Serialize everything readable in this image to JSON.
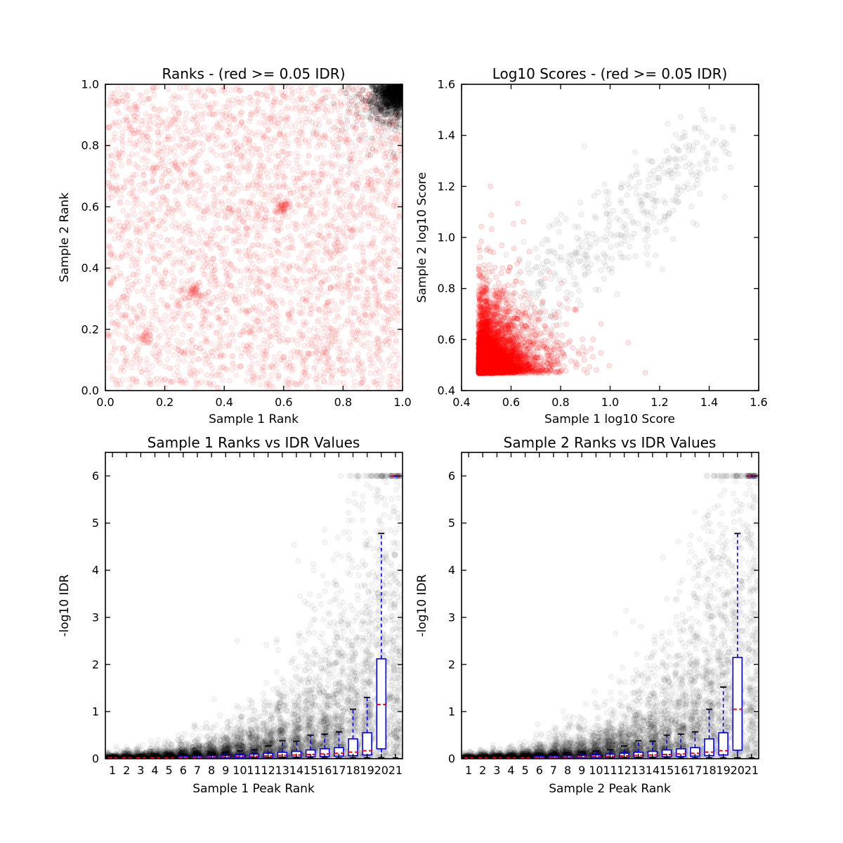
{
  "figure": {
    "background": "#ffffff"
  },
  "palette": {
    "significant_red": "#ff0000",
    "reproducible_black": "#000000",
    "scatter_gray": "#888888",
    "box_blue": "#0000ff",
    "median_red": "#ff0000",
    "cap_black": "#000000"
  },
  "chart_data": [
    {
      "id": "ranks-scatter",
      "type": "scatter",
      "title": "Ranks - (red >= 0.05 IDR)",
      "xlabel": "Sample 1 Rank",
      "ylabel": "Sample 2 Rank",
      "xlim": [
        0.0,
        1.0
      ],
      "ylim": [
        0.0,
        1.0
      ],
      "xticks": {
        "values": [
          0.0,
          0.2,
          0.4,
          0.6,
          0.8,
          1.0
        ],
        "labels": [
          "0.0",
          "0.2",
          "0.4",
          "0.6",
          "0.8",
          "1.0"
        ]
      },
      "yticks": {
        "values": [
          0.0,
          0.2,
          0.4,
          0.6,
          0.8,
          1.0
        ],
        "labels": [
          "0.0",
          "0.2",
          "0.4",
          "0.6",
          "0.8",
          "1.0"
        ]
      },
      "grid": false,
      "series": [
        {
          "name": "irreproducible-red-points",
          "kind": "uniform",
          "n": 3400,
          "range": [
            0.008,
            0.992
          ],
          "color": "#ff0000",
          "opacity": 0.055,
          "edge_opacity": 0.1,
          "radius": 3.5,
          "clusters": [
            {
              "x": 0.6,
              "y": 0.6,
              "n": 45,
              "sigma": 0.013
            },
            {
              "x": 0.3,
              "y": 0.32,
              "n": 40,
              "sigma": 0.014
            },
            {
              "x": 0.13,
              "y": 0.18,
              "n": 25,
              "sigma": 0.012
            }
          ]
        },
        {
          "name": "reproducible-black-corner-points",
          "kind": "corner",
          "n": 620,
          "corner": [
            1.0,
            1.0
          ],
          "sigma": 0.048,
          "color": "#000000",
          "opacity": 0.1,
          "edge_opacity": 0.16,
          "radius": 3.5
        },
        {
          "name": "reproducible-black-corner-halo",
          "kind": "corner",
          "n": 180,
          "corner": [
            1.0,
            1.0
          ],
          "sigma": 0.12,
          "color": "#000000",
          "opacity": 0.05,
          "edge_opacity": 0.08,
          "radius": 3.5
        }
      ]
    },
    {
      "id": "log10-scores-scatter",
      "type": "scatter",
      "title": "Log10 Scores - (red >= 0.05 IDR)",
      "xlabel": "Sample 1 log10 Score",
      "ylabel": "Sample 2 log10 Score",
      "xlim": [
        0.4,
        1.6
      ],
      "ylim": [
        0.4,
        1.6
      ],
      "xticks": {
        "values": [
          0.4,
          0.6,
          0.8,
          1.0,
          1.2,
          1.4,
          1.6
        ],
        "labels": [
          "0.4",
          "0.6",
          "0.8",
          "1.0",
          "1.2",
          "1.4",
          "1.6"
        ]
      },
      "yticks": {
        "values": [
          0.4,
          0.6,
          0.8,
          1.0,
          1.2,
          1.4,
          1.6
        ],
        "labels": [
          "0.4",
          "0.6",
          "0.8",
          "1.0",
          "1.2",
          "1.4",
          "1.6"
        ]
      },
      "grid": false,
      "series": [
        {
          "name": "red-low-score-cloud",
          "kind": "expo2d",
          "n": 4200,
          "origin": [
            0.468,
            0.468
          ],
          "scale": [
            0.075,
            0.082
          ],
          "max": 1.55,
          "color": "#ff0000",
          "opacity": 0.1,
          "edge_opacity": 0.16,
          "radius": 3.5
        },
        {
          "name": "red-low-score-core",
          "kind": "expo2d",
          "n": 750,
          "origin": [
            0.468,
            0.468
          ],
          "scale": [
            0.035,
            0.04
          ],
          "max": 1.2,
          "color": "#ff0000",
          "opacity": 0.1,
          "edge_opacity": 0.16,
          "radius": 3.5
        },
        {
          "name": "gray-high-score-cloud",
          "kind": "diag",
          "n": 360,
          "start": [
            0.715,
            0.795
          ],
          "dir": [
            0.73,
            0.6
          ],
          "noise": [
            0.05,
            0.095
          ],
          "pow": 1.15,
          "max": 1.52,
          "color": "#888888",
          "opacity": 0.1,
          "edge_opacity": 0.14,
          "radius": 3.8
        }
      ]
    },
    {
      "id": "sample1-ranks-vs-idr",
      "type": "boxplot",
      "title": "Sample 1 Ranks vs IDR Values",
      "xlabel": "Sample 1 Peak Rank",
      "ylabel": "-log10 IDR",
      "xlim": [
        0.5,
        21.5
      ],
      "ylim": [
        0,
        6.5
      ],
      "xticks": {
        "values": [
          1,
          2,
          3,
          4,
          5,
          6,
          7,
          8,
          9,
          10,
          11,
          12,
          13,
          14,
          15,
          16,
          17,
          18,
          19,
          20,
          21
        ],
        "labels": [
          "1",
          "2",
          "3",
          "4",
          "5",
          "6",
          "7",
          "8",
          "9",
          "10",
          "11",
          "12",
          "13",
          "14",
          "15",
          "16",
          "17",
          "18",
          "19",
          "20",
          "21"
        ]
      },
      "yticks": {
        "values": [
          0,
          1,
          2,
          3,
          4,
          5,
          6
        ],
        "labels": [
          "0",
          "1",
          "2",
          "3",
          "4",
          "5",
          "6"
        ]
      },
      "grid": false,
      "background": {
        "name": "idr-scatter-background",
        "n_per_rank": 280,
        "scale0": 0.022,
        "scale_growth": 0.232,
        "ymax": 6,
        "jitter": 0.42,
        "color": "#000000",
        "opacity": 0.04,
        "edge_opacity": 0.06,
        "radius": 3.8
      },
      "box_style": {
        "box": "#0000ff",
        "median": "#ff0000",
        "whisker": "#0000ff",
        "cap": "#000000",
        "flier": "#000000"
      },
      "boxes": [
        {
          "x": 1,
          "med": 0.02,
          "collapsed": true
        },
        {
          "x": 2,
          "med": 0.02,
          "collapsed": true
        },
        {
          "x": 3,
          "med": 0.02,
          "collapsed": true
        },
        {
          "x": 4,
          "med": 0.02,
          "collapsed": true
        },
        {
          "x": 5,
          "med": 0.02,
          "collapsed": true
        },
        {
          "x": 6,
          "lo": 0.001,
          "q1": 0.012,
          "med": 0.028,
          "q3": 0.048,
          "hi": 0.095,
          "flier": null
        },
        {
          "x": 7,
          "lo": 0.001,
          "q1": 0.014,
          "med": 0.032,
          "q3": 0.055,
          "hi": 0.11,
          "flier": null
        },
        {
          "x": 8,
          "lo": 0.001,
          "q1": 0.016,
          "med": 0.036,
          "q3": 0.062,
          "hi": 0.125,
          "flier": null
        },
        {
          "x": 9,
          "lo": 0.002,
          "q1": 0.018,
          "med": 0.04,
          "q3": 0.07,
          "hi": 0.14,
          "flier": null
        },
        {
          "x": 10,
          "lo": 0.002,
          "q1": 0.02,
          "med": 0.046,
          "q3": 0.08,
          "hi": 0.165,
          "flier": null
        },
        {
          "x": 11,
          "lo": 0.002,
          "q1": 0.024,
          "med": 0.052,
          "q3": 0.095,
          "hi": 0.19,
          "flier": 0.02
        },
        {
          "x": 12,
          "lo": 0.003,
          "q1": 0.028,
          "med": 0.06,
          "q3": 0.115,
          "hi": 0.27,
          "flier": 0.02
        },
        {
          "x": 13,
          "lo": 0.003,
          "q1": 0.032,
          "med": 0.068,
          "q3": 0.135,
          "hi": 0.38,
          "flier": 0.02
        },
        {
          "x": 14,
          "lo": 0.004,
          "q1": 0.036,
          "med": 0.078,
          "q3": 0.155,
          "hi": 0.37,
          "flier": 0.02
        },
        {
          "x": 15,
          "lo": 0.004,
          "q1": 0.042,
          "med": 0.09,
          "q3": 0.185,
          "hi": 0.5,
          "flier": 0.02
        },
        {
          "x": 16,
          "lo": 0.005,
          "q1": 0.048,
          "med": 0.1,
          "q3": 0.21,
          "hi": 0.52,
          "flier": 0.02
        },
        {
          "x": 17,
          "lo": 0.005,
          "q1": 0.055,
          "med": 0.115,
          "q3": 0.235,
          "hi": 0.57,
          "flier": 0.02
        },
        {
          "x": 18,
          "lo": 0.006,
          "q1": 0.065,
          "med": 0.14,
          "q3": 0.42,
          "hi": 1.05,
          "flier": 0.02
        },
        {
          "x": 19,
          "lo": 0.007,
          "q1": 0.08,
          "med": 0.17,
          "q3": 0.55,
          "hi": 1.3,
          "flier": 0.02
        },
        {
          "x": 20,
          "lo": 0.02,
          "q1": 0.21,
          "med": 1.15,
          "q3": 2.12,
          "hi": 4.78,
          "flier": 0.02
        },
        {
          "x": 21,
          "lo": 6.0,
          "q1": 6.0,
          "med": 6.0,
          "q3": 6.0,
          "hi": 6.0,
          "flier": 0.02
        }
      ]
    },
    {
      "id": "sample2-ranks-vs-idr",
      "type": "boxplot",
      "title": "Sample 2 Ranks vs IDR Values",
      "xlabel": "Sample 2 Peak Rank",
      "ylabel": "-log10 IDR",
      "xlim": [
        0.5,
        21.5
      ],
      "ylim": [
        0,
        6.5
      ],
      "xticks": {
        "values": [
          1,
          2,
          3,
          4,
          5,
          6,
          7,
          8,
          9,
          10,
          11,
          12,
          13,
          14,
          15,
          16,
          17,
          18,
          19,
          20,
          21
        ],
        "labels": [
          "1",
          "2",
          "3",
          "4",
          "5",
          "6",
          "7",
          "8",
          "9",
          "10",
          "11",
          "12",
          "13",
          "14",
          "15",
          "16",
          "17",
          "18",
          "19",
          "20",
          "21"
        ]
      },
      "yticks": {
        "values": [
          0,
          1,
          2,
          3,
          4,
          5,
          6
        ],
        "labels": [
          "0",
          "1",
          "2",
          "3",
          "4",
          "5",
          "6"
        ]
      },
      "grid": false,
      "background": {
        "name": "idr-scatter-background",
        "n_per_rank": 280,
        "scale0": 0.022,
        "scale_growth": 0.232,
        "ymax": 6,
        "jitter": 0.42,
        "color": "#000000",
        "opacity": 0.04,
        "edge_opacity": 0.06,
        "radius": 3.8
      },
      "box_style": {
        "box": "#0000ff",
        "median": "#ff0000",
        "whisker": "#0000ff",
        "cap": "#000000",
        "flier": "#000000"
      },
      "boxes": [
        {
          "x": 1,
          "med": 0.02,
          "collapsed": true
        },
        {
          "x": 2,
          "med": 0.02,
          "collapsed": true
        },
        {
          "x": 3,
          "med": 0.02,
          "collapsed": true
        },
        {
          "x": 4,
          "med": 0.02,
          "collapsed": true
        },
        {
          "x": 5,
          "med": 0.02,
          "collapsed": true
        },
        {
          "x": 6,
          "lo": 0.001,
          "q1": 0.012,
          "med": 0.028,
          "q3": 0.048,
          "hi": 0.095,
          "flier": null
        },
        {
          "x": 7,
          "lo": 0.001,
          "q1": 0.014,
          "med": 0.032,
          "q3": 0.055,
          "hi": 0.11,
          "flier": null
        },
        {
          "x": 8,
          "lo": 0.001,
          "q1": 0.016,
          "med": 0.036,
          "q3": 0.062,
          "hi": 0.125,
          "flier": null
        },
        {
          "x": 9,
          "lo": 0.002,
          "q1": 0.018,
          "med": 0.04,
          "q3": 0.07,
          "hi": 0.14,
          "flier": null
        },
        {
          "x": 10,
          "lo": 0.002,
          "q1": 0.02,
          "med": 0.046,
          "q3": 0.08,
          "hi": 0.165,
          "flier": null
        },
        {
          "x": 11,
          "lo": 0.002,
          "q1": 0.024,
          "med": 0.052,
          "q3": 0.095,
          "hi": 0.19,
          "flier": 0.02
        },
        {
          "x": 12,
          "lo": 0.003,
          "q1": 0.028,
          "med": 0.06,
          "q3": 0.115,
          "hi": 0.27,
          "flier": 0.02
        },
        {
          "x": 13,
          "lo": 0.003,
          "q1": 0.032,
          "med": 0.068,
          "q3": 0.135,
          "hi": 0.38,
          "flier": 0.02
        },
        {
          "x": 14,
          "lo": 0.004,
          "q1": 0.036,
          "med": 0.078,
          "q3": 0.155,
          "hi": 0.37,
          "flier": 0.02
        },
        {
          "x": 15,
          "lo": 0.004,
          "q1": 0.042,
          "med": 0.09,
          "q3": 0.185,
          "hi": 0.5,
          "flier": 0.02
        },
        {
          "x": 16,
          "lo": 0.005,
          "q1": 0.048,
          "med": 0.1,
          "q3": 0.21,
          "hi": 0.52,
          "flier": 0.02
        },
        {
          "x": 17,
          "lo": 0.005,
          "q1": 0.055,
          "med": 0.115,
          "q3": 0.235,
          "hi": 0.57,
          "flier": 0.02
        },
        {
          "x": 18,
          "lo": 0.006,
          "q1": 0.065,
          "med": 0.14,
          "q3": 0.42,
          "hi": 1.05,
          "flier": 0.02
        },
        {
          "x": 19,
          "lo": 0.007,
          "q1": 0.08,
          "med": 0.17,
          "q3": 0.55,
          "hi": 1.52,
          "flier": 0.02
        },
        {
          "x": 20,
          "lo": 0.02,
          "q1": 0.18,
          "med": 1.05,
          "q3": 2.15,
          "hi": 4.78,
          "flier": 0.02
        },
        {
          "x": 21,
          "lo": 6.0,
          "q1": 6.0,
          "med": 6.0,
          "q3": 6.0,
          "hi": 6.0,
          "flier": 0.02
        }
      ]
    }
  ]
}
